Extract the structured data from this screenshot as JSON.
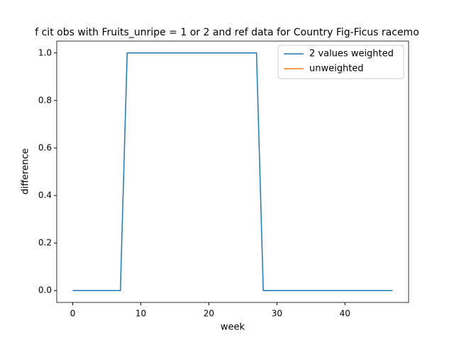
{
  "chart_data": {
    "type": "line",
    "title": "f cit obs with Fruits_unripe = 1 or 2 and ref data for Country Fig-Ficus racemo",
    "xlabel": "week",
    "ylabel": "difference",
    "x": [
      0,
      1,
      2,
      3,
      4,
      5,
      6,
      7,
      8,
      9,
      10,
      11,
      12,
      13,
      14,
      15,
      16,
      17,
      18,
      19,
      20,
      21,
      22,
      23,
      24,
      25,
      26,
      27,
      28,
      29,
      30,
      31,
      32,
      33,
      34,
      35,
      36,
      37,
      38,
      39,
      40,
      41,
      42,
      43,
      44,
      45,
      46,
      47
    ],
    "series": [
      {
        "name": "2 values weighted",
        "color": "#1f77b4",
        "values": [
          0,
          0,
          0,
          0,
          0,
          0,
          0,
          0,
          1,
          1,
          1,
          1,
          1,
          1,
          1,
          1,
          1,
          1,
          1,
          1,
          1,
          1,
          1,
          1,
          1,
          1,
          1,
          1,
          0,
          0,
          0,
          0,
          0,
          0,
          0,
          0,
          0,
          0,
          0,
          0,
          0,
          0,
          0,
          0,
          0,
          0,
          0,
          0
        ]
      },
      {
        "name": "unweighted",
        "color": "#ff7f0e",
        "values": [
          null,
          null,
          null,
          null,
          null,
          null,
          null,
          null,
          null,
          null,
          null,
          null,
          null,
          null,
          null,
          null,
          null,
          null,
          null,
          null,
          null,
          null,
          null,
          null,
          null,
          null,
          null,
          null,
          null,
          null,
          null,
          null,
          null,
          null,
          null,
          null,
          null,
          null,
          null,
          null,
          null,
          null,
          null,
          null,
          null,
          null,
          null,
          null
        ]
      }
    ],
    "xlim": [
      -2.35,
      49.35
    ],
    "xticks": [
      0,
      10,
      20,
      30,
      40
    ],
    "ylim": [
      -0.05,
      1.05
    ],
    "yticks": [
      {
        "value": 0,
        "label": "0.0"
      },
      {
        "value": 0.2,
        "label": "0.2"
      },
      {
        "value": 0.4,
        "label": "0.4"
      },
      {
        "value": 0.6,
        "label": "0.6"
      },
      {
        "value": 0.8,
        "label": "0.8"
      },
      {
        "value": 1.0,
        "label": "1.0"
      }
    ],
    "legend": "upper right"
  }
}
